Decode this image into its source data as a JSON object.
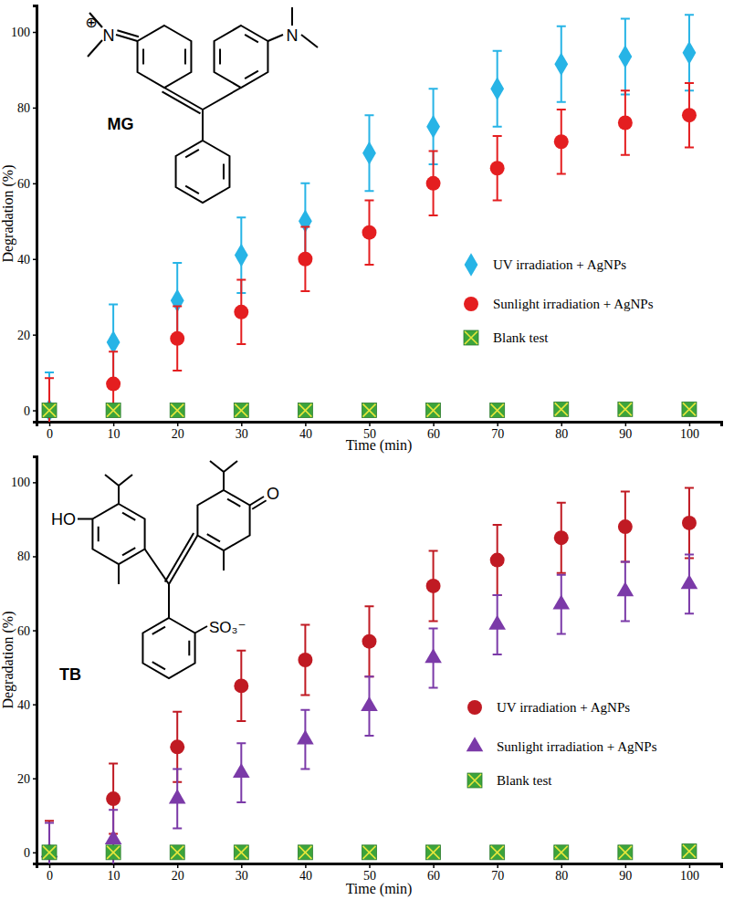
{
  "chart_data": [
    {
      "type": "scatter",
      "x_label": "Time (min)",
      "y_label": "Degradation (%)",
      "annotations": [
        "MG",
        "⊕",
        "N",
        "N"
      ],
      "xlim": [
        -2,
        105
      ],
      "ylim": [
        -3,
        107
      ],
      "xticks": [
        0,
        10,
        20,
        30,
        40,
        50,
        60,
        70,
        80,
        90,
        100
      ],
      "yticks": [
        0,
        20,
        40,
        60,
        80,
        100
      ],
      "grid": false,
      "legend": "right",
      "x": [
        0,
        10,
        20,
        30,
        40,
        50,
        60,
        70,
        80,
        90,
        100
      ],
      "series": [
        {
          "name": "UV irradiation + AgNPs",
          "color": "#27b4e6",
          "marker": "diamond",
          "values": [
            0,
            18,
            29,
            41,
            50,
            68,
            75,
            85,
            91.5,
            93.5,
            94.5
          ],
          "errors": [
            10,
            10,
            10,
            10,
            10,
            10,
            10,
            10,
            10,
            10,
            10
          ]
        },
        {
          "name": "Sunlight irradiation + AgNPs",
          "color": "#e41e20",
          "marker": "circle",
          "values": [
            0,
            7,
            19,
            26,
            40,
            47,
            60,
            64,
            71,
            76,
            78
          ],
          "errors": [
            8.5,
            8.5,
            8.5,
            8.5,
            8.5,
            8.5,
            8.5,
            8.5,
            8.5,
            8.5,
            8.5
          ]
        },
        {
          "name": "Blank test",
          "color": "#3ca43c",
          "marker": "square-x",
          "values": [
            0,
            0,
            0,
            0,
            0,
            0,
            0,
            0,
            0.3,
            0.3,
            0.3
          ]
        }
      ]
    },
    {
      "type": "scatter",
      "x_label": "Time (min)",
      "y_label": "Degradation (%)",
      "annotations": [
        "TB",
        "HO",
        "O",
        "SO₃⁻"
      ],
      "xlim": [
        -2,
        105
      ],
      "ylim": [
        -3,
        107
      ],
      "xticks": [
        0,
        10,
        20,
        30,
        40,
        50,
        60,
        70,
        80,
        90,
        100
      ],
      "yticks": [
        0,
        20,
        40,
        60,
        80,
        100
      ],
      "grid": false,
      "legend": "right",
      "x": [
        0,
        10,
        20,
        30,
        40,
        50,
        60,
        70,
        80,
        90,
        100
      ],
      "series": [
        {
          "name": "UV irradiation + AgNPs",
          "color": "#c01a23",
          "marker": "circle",
          "values": [
            0,
            14.5,
            28.5,
            45,
            52,
            57,
            72,
            79,
            85,
            88,
            89
          ],
          "errors": [
            8.5,
            9.5,
            9.5,
            9.5,
            9.5,
            9.5,
            9.5,
            9.5,
            9.5,
            9.5,
            9.5
          ]
        },
        {
          "name": "Sunlight irradiation + AgNPs",
          "color": "#7b3aa8",
          "marker": "triangle",
          "values": [
            0,
            3.5,
            14.5,
            21.5,
            30.5,
            39.5,
            52.5,
            61.5,
            67,
            70.5,
            72.5
          ],
          "errors": [
            8,
            8,
            8,
            8,
            8,
            8,
            8,
            8,
            8,
            8,
            8
          ]
        },
        {
          "name": "Blank test",
          "color": "#3ca43c",
          "marker": "square-x",
          "values": [
            0,
            0,
            0,
            0,
            0,
            0,
            0,
            0,
            0,
            0,
            0.3
          ]
        }
      ]
    }
  ]
}
